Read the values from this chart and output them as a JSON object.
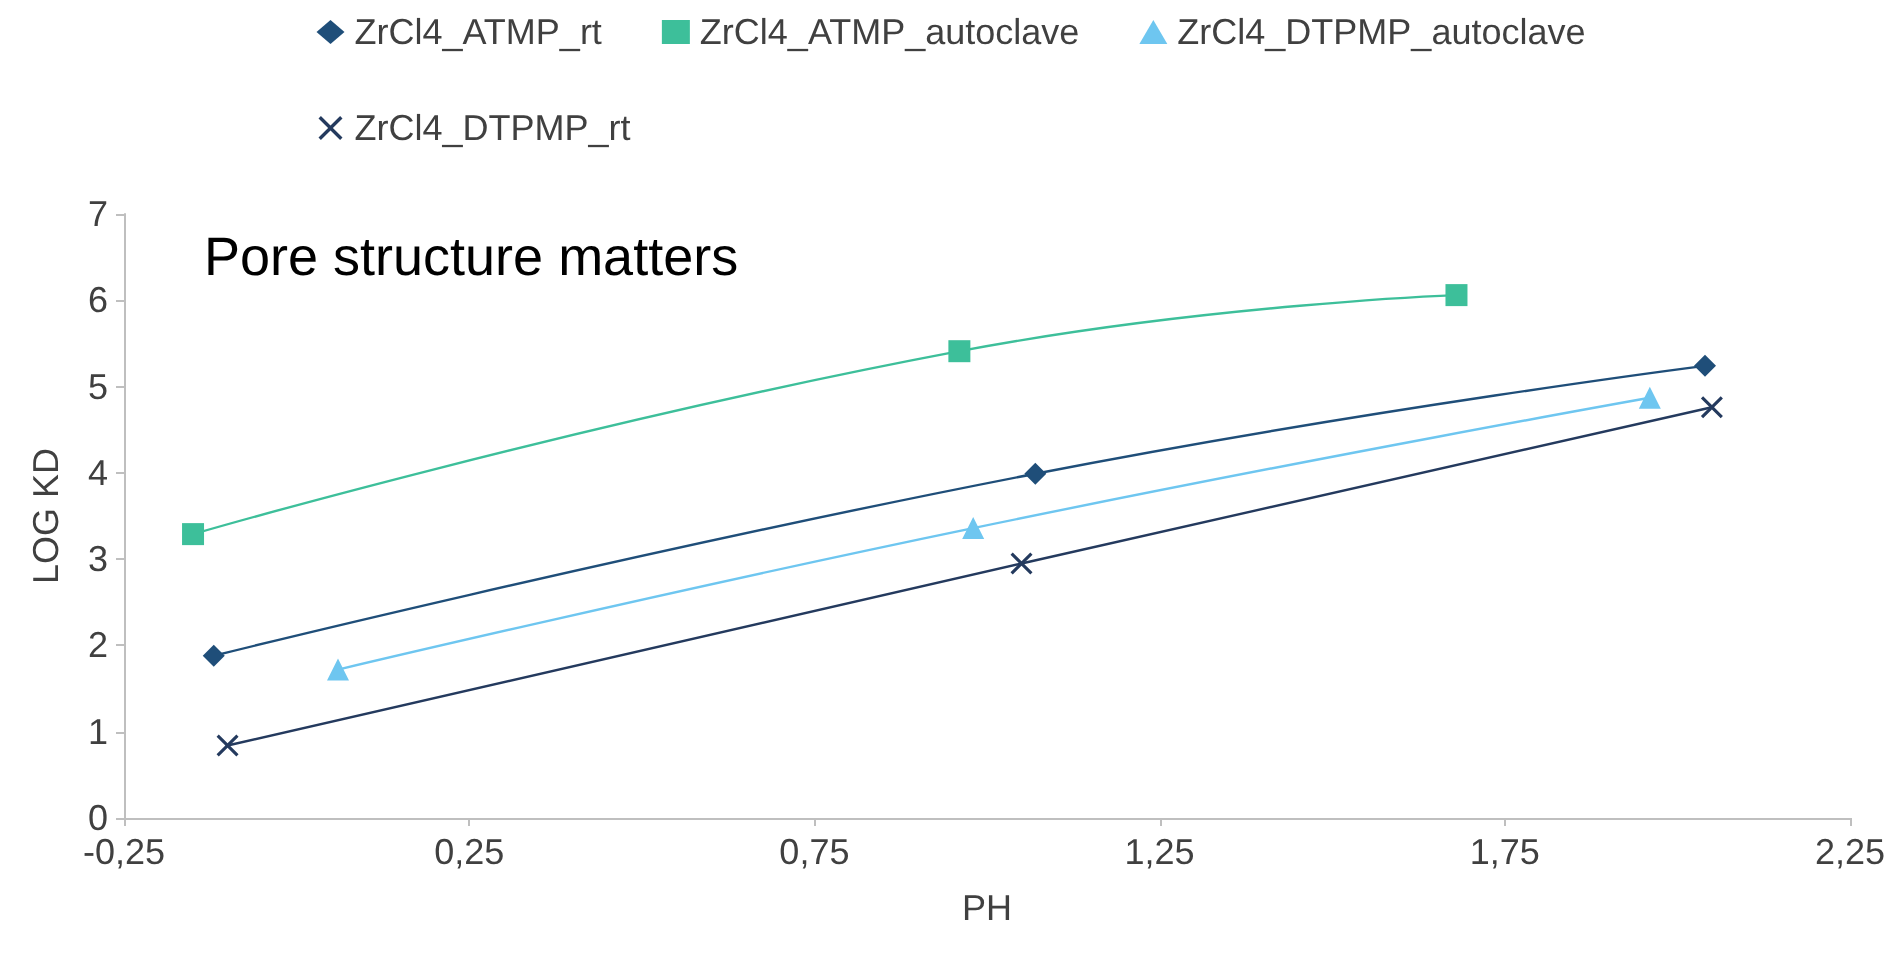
{
  "chart_data": {
    "type": "line",
    "xlabel": "PH",
    "ylabel": "LOG KD",
    "annotations": [
      "Pore structure matters"
    ],
    "xlim": [
      -0.25,
      2.25
    ],
    "xticks": [
      {
        "value": -0.25,
        "label": "-0,25"
      },
      {
        "value": 0.25,
        "label": "0,25"
      },
      {
        "value": 0.75,
        "label": "0,75"
      },
      {
        "value": 1.25,
        "label": "1,25"
      },
      {
        "value": 1.75,
        "label": "1,75"
      },
      {
        "value": 2.25,
        "label": "2,25"
      }
    ],
    "ylim": [
      0,
      7
    ],
    "yticks": [
      0,
      1,
      2,
      3,
      4,
      5,
      6,
      7
    ],
    "grid": false,
    "legend": "top",
    "line_style": "solid",
    "series": [
      {
        "name": "ZrCl4_ATMP_rt",
        "color": "#1f4e79",
        "marker": "diamond",
        "x": [
          -0.12,
          1.07,
          2.04
        ],
        "values": [
          1.88,
          3.99,
          5.24
        ]
      },
      {
        "name": "ZrCl4_ATMP_autoclave",
        "color": "#3dbf9a",
        "marker": "square",
        "x": [
          -0.15,
          0.96,
          1.68
        ],
        "values": [
          3.29,
          5.41,
          6.06
        ]
      },
      {
        "name": "ZrCl4_DTPMP_autoclave",
        "color": "#6ec6f0",
        "marker": "triangle",
        "x": [
          0.06,
          0.98,
          1.96
        ],
        "values": [
          1.72,
          3.36,
          4.87
        ]
      },
      {
        "name": "ZrCl4_DTPMP_rt",
        "color": "#243a5e",
        "marker": "cross",
        "x": [
          -0.1,
          1.05,
          2.05
        ],
        "values": [
          0.84,
          2.95,
          4.76
        ]
      }
    ]
  }
}
